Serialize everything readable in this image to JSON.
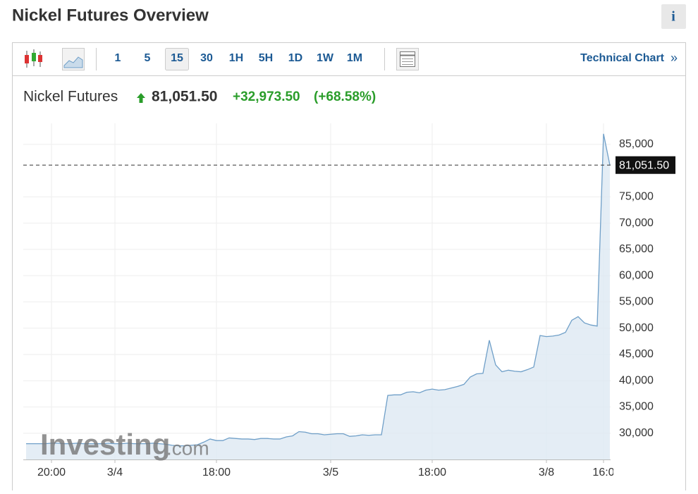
{
  "page": {
    "title": "Nickel Futures Overview",
    "info_button": "i",
    "toolbar": {
      "intervals": [
        "1",
        "5",
        "15",
        "30",
        "1H",
        "5H",
        "1D",
        "1W",
        "1M"
      ],
      "selected": "15",
      "technical_chart": "Technical Chart",
      "technical_chart_arrow": "»"
    },
    "quote": {
      "name": "Nickel Futures",
      "price": "81,051.50",
      "change": "+32,973.50",
      "change_percent": "(+68.58%)"
    },
    "watermark": [
      "Investing",
      ".com"
    ]
  },
  "chart_data": {
    "type": "area",
    "categories": [
      null,
      null,
      null,
      null,
      "20:00",
      null,
      null,
      null,
      null,
      null,
      null,
      null,
      null,
      null,
      "3/4",
      null,
      null,
      null,
      null,
      null,
      null,
      null,
      null,
      null,
      null,
      null,
      null,
      null,
      null,
      null,
      "18:00",
      null,
      null,
      null,
      null,
      null,
      null,
      null,
      null,
      null,
      null,
      null,
      null,
      null,
      null,
      null,
      null,
      null,
      "3/5",
      null,
      null,
      null,
      null,
      null,
      null,
      null,
      null,
      null,
      null,
      null,
      null,
      null,
      null,
      null,
      "18:00",
      null,
      null,
      null,
      null,
      null,
      null,
      null,
      null,
      null,
      null,
      null,
      null,
      null,
      null,
      null,
      null,
      null,
      "3/8",
      null,
      null,
      null,
      null,
      null,
      null,
      null,
      null,
      "16:0",
      null
    ],
    "values": [
      28000,
      28000,
      28000,
      28000,
      28100,
      28100,
      28000,
      28000,
      28100,
      28000,
      28000,
      28000,
      28000,
      28100,
      28000,
      28000,
      28100,
      28000,
      28000,
      28000,
      28100,
      28000,
      27900,
      27700,
      27600,
      27600,
      27700,
      27800,
      28300,
      28900,
      28600,
      28600,
      29100,
      29000,
      28900,
      28900,
      28800,
      29000,
      29000,
      28900,
      28900,
      29300,
      29500,
      30300,
      30200,
      29900,
      29900,
      29700,
      29800,
      29900,
      29900,
      29400,
      29500,
      29700,
      29600,
      29700,
      29700,
      37200,
      37300,
      37300,
      37800,
      37900,
      37700,
      38200,
      38400,
      38200,
      38300,
      38600,
      38900,
      39300,
      40700,
      41300,
      41400,
      47700,
      43000,
      41700,
      42000,
      41800,
      41700,
      42100,
      42600,
      48600,
      48400,
      48500,
      48700,
      49200,
      51500,
      52200,
      51000,
      50600,
      50400,
      87000,
      81051.5
    ],
    "color": "#6f9fc8",
    "fill_color": "#dde8f2",
    "ylim": [
      25000,
      89000
    ],
    "yticks": [
      {
        "value": 30000,
        "label": "30,000"
      },
      {
        "value": 35000,
        "label": "35,000"
      },
      {
        "value": 40000,
        "label": "40,000"
      },
      {
        "value": 45000,
        "label": "45,000"
      },
      {
        "value": 50000,
        "label": "50,000"
      },
      {
        "value": 55000,
        "label": "55,000"
      },
      {
        "value": 60000,
        "label": "60,000"
      },
      {
        "value": 65000,
        "label": "65,000"
      },
      {
        "value": 70000,
        "label": "70,000"
      },
      {
        "value": 75000,
        "label": "75,000"
      },
      {
        "value": 85000,
        "label": "85,000"
      }
    ],
    "current_price": {
      "value": 81051.5,
      "label": "81,051.50"
    },
    "grid": true
  }
}
